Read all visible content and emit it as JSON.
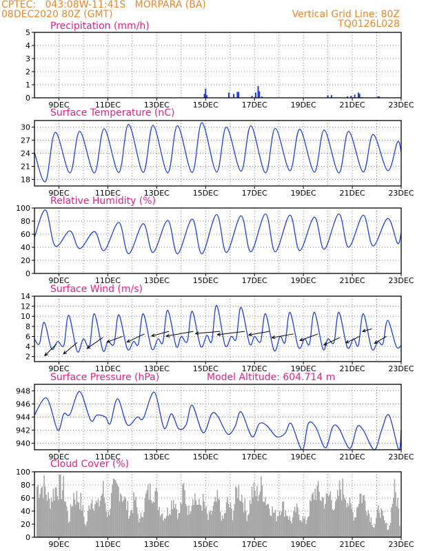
{
  "header": {
    "line1": "CPTEC:   043:08W-11:41S   MORPARA (BA)",
    "line2": "08DEC2020 80Z (GMT)",
    "right1": "Vertical Grid Line: 80Z",
    "right2": "TQ0126L028"
  },
  "colors": {
    "header": "#e8862a",
    "title": "#e0208a",
    "series": "#1f3fd6",
    "cloud": "#a6a6a6",
    "arrow": "#000000"
  },
  "chart_data": [
    {
      "type": "bar",
      "title": "Precipitation (mm/h)",
      "ylim": [
        0,
        5
      ],
      "yticks": [
        0,
        1,
        2,
        3,
        4,
        5
      ],
      "xlim_day": [
        8,
        23
      ],
      "xticks": [
        "9DEC",
        "11DEC",
        "13DEC",
        "15DEC",
        "17DEC",
        "19DEC",
        "21DEC",
        "23DEC"
      ],
      "bars": [
        {
          "day": 14.95,
          "v": 0.3
        },
        {
          "day": 15.0,
          "v": 0.7
        },
        {
          "day": 15.05,
          "v": 0.2
        },
        {
          "day": 15.95,
          "v": 0.4
        },
        {
          "day": 16.15,
          "v": 0.3
        },
        {
          "day": 16.3,
          "v": 0.45
        },
        {
          "day": 16.35,
          "v": 0.45
        },
        {
          "day": 16.9,
          "v": 0.15
        },
        {
          "day": 17.05,
          "v": 0.4
        },
        {
          "day": 17.15,
          "v": 0.9
        },
        {
          "day": 17.2,
          "v": 0.5
        },
        {
          "day": 17.3,
          "v": 0.1
        },
        {
          "day": 20.0,
          "v": 0.2
        },
        {
          "day": 20.15,
          "v": 0.2
        },
        {
          "day": 20.8,
          "v": 0.1
        },
        {
          "day": 20.95,
          "v": 0.15
        },
        {
          "day": 21.1,
          "v": 0.25
        },
        {
          "day": 21.25,
          "v": 0.4
        },
        {
          "day": 21.3,
          "v": 0.3
        },
        {
          "day": 21.4,
          "v": 0.05
        },
        {
          "day": 22.05,
          "v": 0.1
        },
        {
          "day": 22.1,
          "v": 0.1
        }
      ]
    },
    {
      "type": "line",
      "title": "Surface Temperature (nC)",
      "ylim": [
        16.5,
        31.5
      ],
      "yticks": [
        18,
        21,
        24,
        27,
        30
      ],
      "xlim_day": [
        8,
        23
      ],
      "xticks": [
        "9DEC",
        "11DEC",
        "13DEC",
        "15DEC",
        "17DEC",
        "19DEC",
        "21DEC",
        "23DEC"
      ],
      "extrema": [
        [
          8.0,
          24.2
        ],
        [
          8.45,
          17.5
        ],
        [
          8.85,
          28.8
        ],
        [
          9.45,
          19.5
        ],
        [
          9.85,
          29.0
        ],
        [
          10.45,
          19.5
        ],
        [
          10.85,
          29.6
        ],
        [
          11.45,
          19.6
        ],
        [
          11.85,
          30.6
        ],
        [
          12.45,
          19.6
        ],
        [
          12.85,
          30.4
        ],
        [
          13.45,
          19.5
        ],
        [
          13.85,
          30.3
        ],
        [
          14.45,
          19.6
        ],
        [
          14.85,
          31.0
        ],
        [
          15.45,
          19.7
        ],
        [
          15.85,
          30.0
        ],
        [
          16.45,
          19.9
        ],
        [
          16.85,
          30.3
        ],
        [
          17.45,
          19.5
        ],
        [
          17.85,
          29.7
        ],
        [
          18.45,
          20.0
        ],
        [
          18.85,
          29.5
        ],
        [
          19.45,
          19.7
        ],
        [
          19.85,
          29.3
        ],
        [
          20.45,
          19.5
        ],
        [
          20.85,
          29.0
        ],
        [
          21.45,
          19.7
        ],
        [
          21.85,
          28.3
        ],
        [
          22.45,
          20.0
        ],
        [
          22.85,
          26.6
        ],
        [
          23.0,
          24.3
        ]
      ]
    },
    {
      "type": "line",
      "title": "Relative Humidity (%)",
      "ylim": [
        0,
        100
      ],
      "yticks": [
        0,
        20,
        40,
        60,
        80,
        100
      ],
      "xlim_day": [
        8,
        23
      ],
      "xticks": [
        "9DEC",
        "11DEC",
        "13DEC",
        "15DEC",
        "17DEC",
        "19DEC",
        "21DEC",
        "23DEC"
      ],
      "extrema": [
        [
          8.0,
          55
        ],
        [
          8.45,
          97
        ],
        [
          8.85,
          42
        ],
        [
          9.45,
          65
        ],
        [
          9.85,
          38
        ],
        [
          10.45,
          64
        ],
        [
          10.85,
          35
        ],
        [
          11.45,
          78
        ],
        [
          11.85,
          30
        ],
        [
          12.45,
          76
        ],
        [
          12.85,
          32
        ],
        [
          13.45,
          81
        ],
        [
          13.85,
          30
        ],
        [
          14.45,
          83
        ],
        [
          14.85,
          30
        ],
        [
          15.45,
          90
        ],
        [
          15.85,
          32
        ],
        [
          16.45,
          88
        ],
        [
          16.85,
          33
        ],
        [
          17.45,
          91
        ],
        [
          17.85,
          33
        ],
        [
          18.45,
          89
        ],
        [
          18.85,
          35
        ],
        [
          19.45,
          86
        ],
        [
          19.85,
          37
        ],
        [
          20.45,
          91
        ],
        [
          20.85,
          40
        ],
        [
          21.45,
          89
        ],
        [
          21.85,
          42
        ],
        [
          22.45,
          84
        ],
        [
          22.85,
          46
        ],
        [
          23.0,
          62
        ]
      ]
    },
    {
      "type": "line",
      "title": "Surface Wind (m/s)",
      "ylim": [
        1,
        14
      ],
      "yticks": [
        2,
        4,
        6,
        8,
        10,
        12,
        14
      ],
      "xlim_day": [
        8,
        23
      ],
      "xticks": [
        "9DEC",
        "11DEC",
        "13DEC",
        "15DEC",
        "17DEC",
        "19DEC",
        "21DEC",
        "23DEC"
      ],
      "extrema": [
        [
          8.0,
          5.5
        ],
        [
          8.2,
          4.5
        ],
        [
          8.4,
          8.8
        ],
        [
          8.7,
          3.5
        ],
        [
          8.95,
          5
        ],
        [
          9.2,
          4.2
        ],
        [
          9.4,
          10.2
        ],
        [
          9.75,
          3.0
        ],
        [
          10.0,
          5.5
        ],
        [
          10.25,
          4.0
        ],
        [
          10.45,
          10.5
        ],
        [
          10.8,
          3.2
        ],
        [
          11.0,
          5.0
        ],
        [
          11.25,
          4.5
        ],
        [
          11.45,
          10.3
        ],
        [
          11.8,
          3.5
        ],
        [
          12.05,
          5.0
        ],
        [
          12.25,
          4.5
        ],
        [
          12.45,
          10.5
        ],
        [
          12.8,
          3.5
        ],
        [
          13.05,
          5.5
        ],
        [
          13.25,
          4.8
        ],
        [
          13.45,
          11.2
        ],
        [
          13.8,
          4.0
        ],
        [
          14.0,
          6.0
        ],
        [
          14.25,
          5.0
        ],
        [
          14.45,
          11.0
        ],
        [
          14.8,
          4.0
        ],
        [
          15.05,
          6.2
        ],
        [
          15.25,
          5.0
        ],
        [
          15.45,
          12.2
        ],
        [
          15.8,
          4.2
        ],
        [
          16.05,
          6.0
        ],
        [
          16.25,
          5.5
        ],
        [
          16.45,
          11.8
        ],
        [
          16.8,
          4.5
        ],
        [
          17.0,
          6.0
        ],
        [
          17.25,
          5.0
        ],
        [
          17.45,
          10.5
        ],
        [
          17.8,
          3.2
        ],
        [
          18.05,
          6.0
        ],
        [
          18.25,
          4.8
        ],
        [
          18.45,
          10.8
        ],
        [
          18.8,
          3.8
        ],
        [
          19.05,
          5.5
        ],
        [
          19.25,
          4.5
        ],
        [
          19.45,
          10.8
        ],
        [
          19.8,
          3.5
        ],
        [
          20.0,
          5.5
        ],
        [
          20.25,
          4.8
        ],
        [
          20.45,
          10.8
        ],
        [
          20.8,
          3.8
        ],
        [
          21.05,
          5.5
        ],
        [
          21.25,
          4.2
        ],
        [
          21.45,
          10.5
        ],
        [
          21.8,
          3.5
        ],
        [
          22.05,
          5.0
        ],
        [
          22.25,
          4.5
        ],
        [
          22.45,
          9.2
        ],
        [
          22.8,
          4.0
        ],
        [
          23.0,
          4.2
        ]
      ],
      "arrows": [
        {
          "day": 8.9,
          "y": 4.5,
          "len": 24,
          "dir": 225
        },
        {
          "day": 9.75,
          "y": 4.8,
          "len": 26,
          "dir": 220
        },
        {
          "day": 10.8,
          "y": 5.8,
          "len": 28,
          "dir": 215
        },
        {
          "day": 11.6,
          "y": 6.0,
          "len": 24,
          "dir": 200
        },
        {
          "day": 12.5,
          "y": 6.5,
          "len": 28,
          "dir": 205
        },
        {
          "day": 13.5,
          "y": 7.0,
          "len": 26,
          "dir": 195
        },
        {
          "day": 14.5,
          "y": 7.0,
          "len": 40,
          "dir": 190
        },
        {
          "day": 15.6,
          "y": 7.0,
          "len": 36,
          "dir": 185
        },
        {
          "day": 16.6,
          "y": 7.0,
          "len": 40,
          "dir": 187
        },
        {
          "day": 17.6,
          "y": 7.0,
          "len": 30,
          "dir": 190
        },
        {
          "day": 18.6,
          "y": 6.5,
          "len": 32,
          "dir": 190
        },
        {
          "day": 19.6,
          "y": 6.5,
          "len": 28,
          "dir": 200
        },
        {
          "day": 20.5,
          "y": 5.8,
          "len": 26,
          "dir": 205
        },
        {
          "day": 21.3,
          "y": 6.0,
          "len": 22,
          "dir": 205
        },
        {
          "day": 21.8,
          "y": 7.5,
          "len": 14,
          "dir": 195
        },
        {
          "day": 22.4,
          "y": 6.0,
          "len": 20,
          "dir": 210
        }
      ]
    },
    {
      "type": "line",
      "title": "Surface Pressure (hPa)",
      "subtitle": "Model Altitude: 604.714  m",
      "ylim": [
        939,
        949
      ],
      "yticks": [
        940,
        942,
        944,
        946,
        948
      ],
      "xlim_day": [
        8,
        23
      ],
      "xticks": [
        "9DEC",
        "11DEC",
        "13DEC",
        "15DEC",
        "17DEC",
        "19DEC",
        "21DEC",
        "23DEC"
      ],
      "extrema": [
        [
          8.0,
          944.3
        ],
        [
          8.5,
          946.9
        ],
        [
          8.95,
          942.0
        ],
        [
          9.2,
          944.5
        ],
        [
          9.45,
          944.4
        ],
        [
          9.85,
          947.9
        ],
        [
          10.3,
          943.5
        ],
        [
          10.55,
          944.3
        ],
        [
          10.9,
          944.0
        ],
        [
          11.1,
          943.0
        ],
        [
          11.4,
          946.8
        ],
        [
          11.8,
          942.8
        ],
        [
          12.2,
          944.0
        ],
        [
          12.45,
          943.8
        ],
        [
          12.9,
          947.8
        ],
        [
          13.3,
          942.3
        ],
        [
          13.6,
          944.5
        ],
        [
          13.9,
          942.2
        ],
        [
          14.2,
          942.8
        ],
        [
          14.45,
          945.8
        ],
        [
          14.9,
          941.6
        ],
        [
          15.25,
          944.5
        ],
        [
          15.5,
          944.1
        ],
        [
          15.9,
          941.4
        ],
        [
          16.2,
          942.5
        ],
        [
          16.45,
          944.8
        ],
        [
          16.9,
          941.0
        ],
        [
          17.2,
          943.0
        ],
        [
          17.5,
          942.7
        ],
        [
          17.9,
          941.0
        ],
        [
          18.25,
          941.5
        ],
        [
          18.5,
          943.0
        ],
        [
          18.95,
          939.0
        ],
        [
          19.2,
          943.0
        ],
        [
          19.5,
          942.5
        ],
        [
          19.9,
          939.3
        ],
        [
          20.2,
          942.5
        ],
        [
          20.45,
          942.3
        ],
        [
          20.9,
          939.2
        ],
        [
          21.2,
          942.5
        ],
        [
          21.45,
          942.0
        ],
        [
          21.9,
          939.0
        ],
        [
          22.2,
          942.0
        ],
        [
          22.5,
          944.3
        ],
        [
          22.9,
          939.0
        ],
        [
          23.0,
          942.0
        ]
      ]
    },
    {
      "type": "bar",
      "title": "Cloud Cover (%)",
      "ylim": [
        0,
        100
      ],
      "yticks": [
        0,
        20,
        40,
        60,
        80,
        100
      ],
      "xlim_day": [
        8,
        23
      ],
      "xticks": [
        "9DEC",
        "11DEC",
        "13DEC",
        "15DEC",
        "17DEC",
        "19DEC",
        "21DEC",
        "23DEC"
      ],
      "envelope": [
        [
          8.0,
          0
        ],
        [
          8.1,
          100
        ],
        [
          8.4,
          100
        ],
        [
          8.6,
          70
        ],
        [
          8.9,
          100
        ],
        [
          9.2,
          95
        ],
        [
          9.4,
          30
        ],
        [
          9.6,
          85
        ],
        [
          9.9,
          70
        ],
        [
          10.1,
          20
        ],
        [
          10.3,
          80
        ],
        [
          10.6,
          60
        ],
        [
          10.8,
          95
        ],
        [
          11.0,
          40
        ],
        [
          11.2,
          90
        ],
        [
          11.5,
          98
        ],
        [
          11.7,
          70
        ],
        [
          11.9,
          45
        ],
        [
          12.1,
          75
        ],
        [
          12.3,
          30
        ],
        [
          12.6,
          85
        ],
        [
          12.9,
          95
        ],
        [
          13.1,
          60
        ],
        [
          13.3,
          40
        ],
        [
          13.5,
          55
        ],
        [
          13.7,
          80
        ],
        [
          13.9,
          40
        ],
        [
          14.1,
          95
        ],
        [
          14.3,
          50
        ],
        [
          14.5,
          90
        ],
        [
          14.7,
          60
        ],
        [
          14.9,
          70
        ],
        [
          15.1,
          35
        ],
        [
          15.3,
          55
        ],
        [
          15.5,
          75
        ],
        [
          15.7,
          30
        ],
        [
          15.9,
          70
        ],
        [
          16.1,
          45
        ],
        [
          16.3,
          98
        ],
        [
          16.5,
          80
        ],
        [
          16.7,
          40
        ],
        [
          16.9,
          90
        ],
        [
          17.1,
          85
        ],
        [
          17.3,
          100
        ],
        [
          17.5,
          70
        ],
        [
          17.7,
          55
        ],
        [
          17.9,
          40
        ],
        [
          18.1,
          65
        ],
        [
          18.3,
          50
        ],
        [
          18.5,
          30
        ],
        [
          18.7,
          55
        ],
        [
          18.9,
          40
        ],
        [
          19.1,
          30
        ],
        [
          19.3,
          65
        ],
        [
          19.5,
          95
        ],
        [
          19.7,
          80
        ],
        [
          19.9,
          70
        ],
        [
          20.1,
          85
        ],
        [
          20.3,
          55
        ],
        [
          20.5,
          98
        ],
        [
          20.7,
          90
        ],
        [
          20.9,
          60
        ],
        [
          21.1,
          40
        ],
        [
          21.3,
          85
        ],
        [
          21.5,
          75
        ],
        [
          21.7,
          45
        ],
        [
          21.9,
          20
        ],
        [
          22.1,
          60
        ],
        [
          22.3,
          30
        ],
        [
          22.5,
          15
        ],
        [
          22.7,
          95
        ],
        [
          22.85,
          70
        ],
        [
          23.0,
          0
        ]
      ]
    }
  ]
}
